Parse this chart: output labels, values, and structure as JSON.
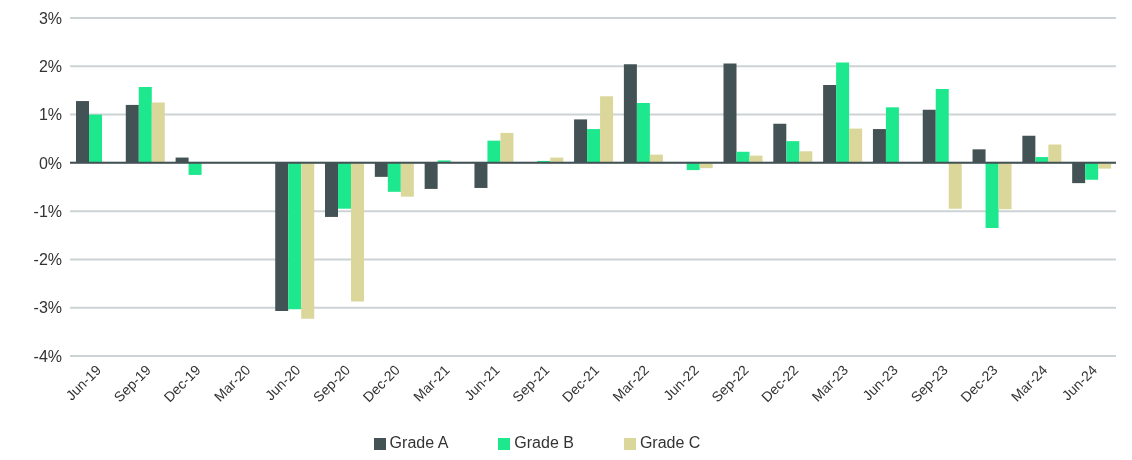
{
  "chart_data": {
    "type": "bar",
    "categories": [
      "Jun-19",
      "Sep-19",
      "Dec-19",
      "Mar-20",
      "Jun-20",
      "Sep-20",
      "Dec-20",
      "Mar-21",
      "Jun-21",
      "Sep-21",
      "Dec-21",
      "Mar-22",
      "Jun-22",
      "Sep-22",
      "Dec-22",
      "Mar-23",
      "Jun-23",
      "Sep-23",
      "Dec-23",
      "Mar-24",
      "Jun-24"
    ],
    "series": [
      {
        "name": "Grade A",
        "color": "#435254",
        "values": [
          1.28,
          1.2,
          0.11,
          0,
          -3.07,
          -1.12,
          -0.29,
          -0.54,
          -0.52,
          0,
          0.9,
          2.04,
          0.01,
          2.06,
          0.81,
          1.61,
          0.7,
          1.1,
          0.28,
          0.56,
          -0.42
        ]
      },
      {
        "name": "Grade B",
        "color": "#1de88e",
        "values": [
          1.0,
          1.57,
          -0.25,
          0,
          -3.03,
          -0.95,
          -0.6,
          0.05,
          0.46,
          0.04,
          0.7,
          1.24,
          -0.15,
          0.23,
          0.45,
          2.08,
          1.15,
          1.53,
          -1.35,
          0.12,
          -0.35
        ]
      },
      {
        "name": "Grade C",
        "color": "#dbd79b",
        "values": [
          0,
          1.25,
          0,
          0,
          -3.23,
          -2.87,
          -0.7,
          null,
          0.62,
          0.11,
          1.38,
          0.17,
          -0.11,
          0.15,
          0.24,
          0.71,
          0,
          -0.95,
          -0.96,
          0.38,
          -0.12
        ]
      }
    ],
    "ylim": [
      -4,
      3
    ],
    "yticks": [
      {
        "value": -4,
        "label": "-4%"
      },
      {
        "value": -3,
        "label": "-3%"
      },
      {
        "value": -2,
        "label": "-2%"
      },
      {
        "value": -1,
        "label": "-1%"
      },
      {
        "value": 0,
        "label": "0%"
      },
      {
        "value": 1,
        "label": "1%"
      },
      {
        "value": 2,
        "label": "2%"
      },
      {
        "value": 3,
        "label": "3%"
      }
    ],
    "grid": "y",
    "legend": "bottom"
  }
}
